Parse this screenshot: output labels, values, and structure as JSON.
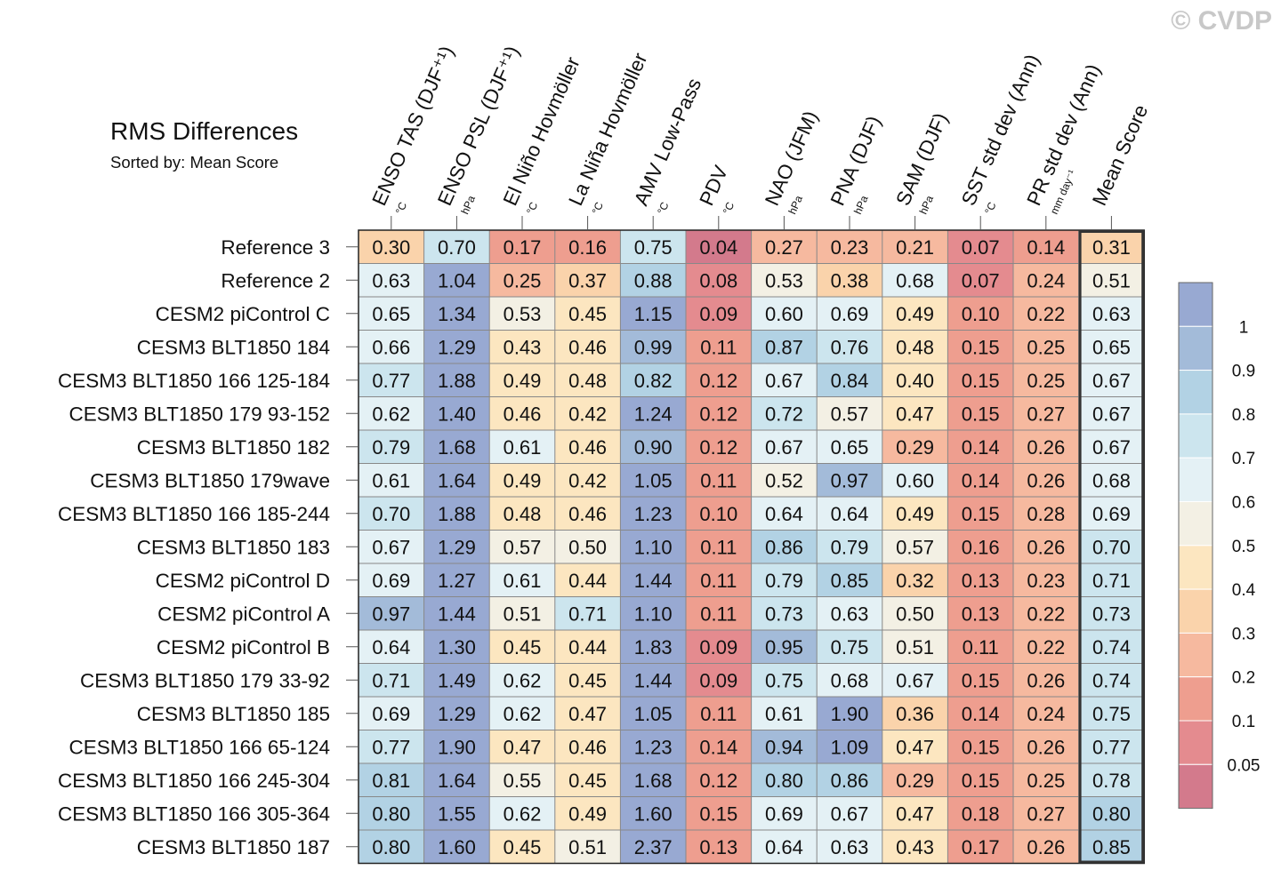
{
  "title": "RMS Differences",
  "subtitle": "Sorted by: Mean Score",
  "watermark": "© CVDP",
  "chart_data": {
    "type": "heatmap",
    "columns": [
      {
        "label": "ENSO TAS (DJF⁺¹)",
        "unit": "°C"
      },
      {
        "label": "ENSO PSL (DJF⁺¹)",
        "unit": "hPa"
      },
      {
        "label": "El Niño Hovmöller",
        "unit": "°C"
      },
      {
        "label": "La Niña Hovmöller",
        "unit": "°C"
      },
      {
        "label": "AMV Low-Pass",
        "unit": "°C"
      },
      {
        "label": "PDV",
        "unit": "°C"
      },
      {
        "label": "NAO (JFM)",
        "unit": "hPa"
      },
      {
        "label": "PNA (DJF)",
        "unit": "hPa"
      },
      {
        "label": "SAM (DJF)",
        "unit": "hPa"
      },
      {
        "label": "SST std dev (Ann)",
        "unit": "°C"
      },
      {
        "label": "PR std dev (Ann)",
        "unit": "mm day⁻¹"
      },
      {
        "label": "Mean Score",
        "unit": ""
      }
    ],
    "rows": [
      {
        "name": "Reference 3",
        "values": [
          "0.30",
          "0.70",
          "0.17",
          "0.16",
          "0.75",
          "0.04",
          "0.27",
          "0.23",
          "0.21",
          "0.07",
          "0.14",
          "0.31"
        ]
      },
      {
        "name": "Reference 2",
        "values": [
          "0.63",
          "1.04",
          "0.25",
          "0.37",
          "0.88",
          "0.08",
          "0.53",
          "0.38",
          "0.68",
          "0.07",
          "0.24",
          "0.51"
        ]
      },
      {
        "name": "CESM2 piControl C",
        "values": [
          "0.65",
          "1.34",
          "0.53",
          "0.45",
          "1.15",
          "0.09",
          "0.60",
          "0.69",
          "0.49",
          "0.10",
          "0.22",
          "0.63"
        ]
      },
      {
        "name": "CESM3 BLT1850 184",
        "values": [
          "0.66",
          "1.29",
          "0.43",
          "0.46",
          "0.99",
          "0.11",
          "0.87",
          "0.76",
          "0.48",
          "0.15",
          "0.25",
          "0.65"
        ]
      },
      {
        "name": "CESM3 BLT1850 166 125-184",
        "values": [
          "0.77",
          "1.88",
          "0.49",
          "0.48",
          "0.82",
          "0.12",
          "0.67",
          "0.84",
          "0.40",
          "0.15",
          "0.25",
          "0.67"
        ]
      },
      {
        "name": "CESM3 BLT1850 179 93-152",
        "values": [
          "0.62",
          "1.40",
          "0.46",
          "0.42",
          "1.24",
          "0.12",
          "0.72",
          "0.57",
          "0.47",
          "0.15",
          "0.27",
          "0.67"
        ]
      },
      {
        "name": "CESM3 BLT1850 182",
        "values": [
          "0.79",
          "1.68",
          "0.61",
          "0.46",
          "0.90",
          "0.12",
          "0.67",
          "0.65",
          "0.29",
          "0.14",
          "0.26",
          "0.67"
        ]
      },
      {
        "name": "CESM3 BLT1850 179wave",
        "values": [
          "0.61",
          "1.64",
          "0.49",
          "0.42",
          "1.05",
          "0.11",
          "0.52",
          "0.97",
          "0.60",
          "0.14",
          "0.26",
          "0.68"
        ]
      },
      {
        "name": "CESM3 BLT1850 166 185-244",
        "values": [
          "0.70",
          "1.88",
          "0.48",
          "0.46",
          "1.23",
          "0.10",
          "0.64",
          "0.64",
          "0.49",
          "0.15",
          "0.28",
          "0.69"
        ]
      },
      {
        "name": "CESM3 BLT1850 183",
        "values": [
          "0.67",
          "1.29",
          "0.57",
          "0.50",
          "1.10",
          "0.11",
          "0.86",
          "0.79",
          "0.57",
          "0.16",
          "0.26",
          "0.70"
        ]
      },
      {
        "name": "CESM2 piControl D",
        "values": [
          "0.69",
          "1.27",
          "0.61",
          "0.44",
          "1.44",
          "0.11",
          "0.79",
          "0.85",
          "0.32",
          "0.13",
          "0.23",
          "0.71"
        ]
      },
      {
        "name": "CESM2 piControl A",
        "values": [
          "0.97",
          "1.44",
          "0.51",
          "0.71",
          "1.10",
          "0.11",
          "0.73",
          "0.63",
          "0.50",
          "0.13",
          "0.22",
          "0.73"
        ]
      },
      {
        "name": "CESM2 piControl B",
        "values": [
          "0.64",
          "1.30",
          "0.45",
          "0.44",
          "1.83",
          "0.09",
          "0.95",
          "0.75",
          "0.51",
          "0.11",
          "0.22",
          "0.74"
        ]
      },
      {
        "name": "CESM3 BLT1850 179 33-92",
        "values": [
          "0.71",
          "1.49",
          "0.62",
          "0.45",
          "1.44",
          "0.09",
          "0.75",
          "0.68",
          "0.67",
          "0.15",
          "0.26",
          "0.74"
        ]
      },
      {
        "name": "CESM3 BLT1850 185",
        "values": [
          "0.69",
          "1.29",
          "0.62",
          "0.47",
          "1.05",
          "0.11",
          "0.61",
          "1.90",
          "0.36",
          "0.14",
          "0.24",
          "0.75"
        ]
      },
      {
        "name": "CESM3 BLT1850 166 65-124",
        "values": [
          "0.77",
          "1.90",
          "0.47",
          "0.46",
          "1.23",
          "0.14",
          "0.94",
          "1.09",
          "0.47",
          "0.15",
          "0.26",
          "0.77"
        ]
      },
      {
        "name": "CESM3 BLT1850 166 245-304",
        "values": [
          "0.81",
          "1.64",
          "0.55",
          "0.45",
          "1.68",
          "0.12",
          "0.80",
          "0.86",
          "0.29",
          "0.15",
          "0.25",
          "0.78"
        ]
      },
      {
        "name": "CESM3 BLT1850 166 305-364",
        "values": [
          "0.80",
          "1.55",
          "0.62",
          "0.49",
          "1.60",
          "0.15",
          "0.69",
          "0.67",
          "0.47",
          "0.18",
          "0.27",
          "0.80"
        ]
      },
      {
        "name": "CESM3 BLT1850 187",
        "values": [
          "0.80",
          "1.60",
          "0.45",
          "0.51",
          "2.37",
          "0.13",
          "0.64",
          "0.63",
          "0.43",
          "0.17",
          "0.26",
          "0.85"
        ]
      }
    ],
    "colorbar": {
      "thresholds": [
        0.05,
        0.1,
        0.2,
        0.3,
        0.4,
        0.5,
        0.6,
        0.7,
        0.8,
        0.9,
        1
      ],
      "tick_labels": [
        "1",
        "0.9",
        "0.8",
        "0.7",
        "0.6",
        "0.5",
        "0.4",
        "0.3",
        "0.2",
        "0.1",
        "0.05"
      ],
      "colors": [
        "#d37a8c",
        "#e48b8f",
        "#ee9e8f",
        "#f6b99f",
        "#fad3ab",
        "#fce6c0",
        "#f3f0e4",
        "#e4f1f5",
        "#cce5ee",
        "#b2d2e4",
        "#a3bbd9",
        "#98a9d2"
      ]
    }
  }
}
